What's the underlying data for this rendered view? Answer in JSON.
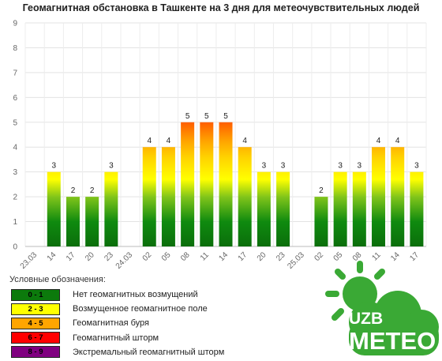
{
  "chart_data": {
    "type": "bar",
    "title": "Геомагнитная обстановка в Ташкенте на 3 дня для метеочувствительных людей",
    "ylim": [
      0,
      9
    ],
    "yticks": [
      0,
      1,
      2,
      3,
      4,
      5,
      6,
      7,
      8,
      9
    ],
    "grid": true,
    "categories": [
      "23.03",
      "14",
      "17",
      "20",
      "23",
      "24.03",
      "02",
      "05",
      "08",
      "11",
      "14",
      "17",
      "20",
      "23",
      "25.03",
      "02",
      "05",
      "08",
      "11",
      "14",
      "17"
    ],
    "values": [
      null,
      3,
      2,
      2,
      3,
      null,
      4,
      4,
      5,
      5,
      5,
      4,
      3,
      3,
      null,
      2,
      3,
      3,
      4,
      4,
      3
    ]
  },
  "legend": {
    "title": "Условные обозначения:",
    "items": [
      {
        "range": "0 - 1",
        "label": "Нет геомагнитных возмущений",
        "color": "#0c7a0c",
        "text_color": "#000000"
      },
      {
        "range": "2 - 3",
        "label": "Возмущенное геомагнитное поле",
        "color": "#ffff00",
        "text_color": "#000000"
      },
      {
        "range": "4 - 5",
        "label": "Геомагнитная буря",
        "color": "#ffa500",
        "text_color": "#000000"
      },
      {
        "range": "6 - 7",
        "label": "Геомагнитный шторм",
        "color": "#ff0000",
        "text_color": "#000000"
      },
      {
        "range": "8 - 9",
        "label": "Экстремальный геомагнитный шторм",
        "color": "#800080",
        "text_color": "#000000"
      }
    ]
  },
  "logo": {
    "line1": "UZB",
    "line2": "METEO",
    "color": "#3aa935"
  }
}
